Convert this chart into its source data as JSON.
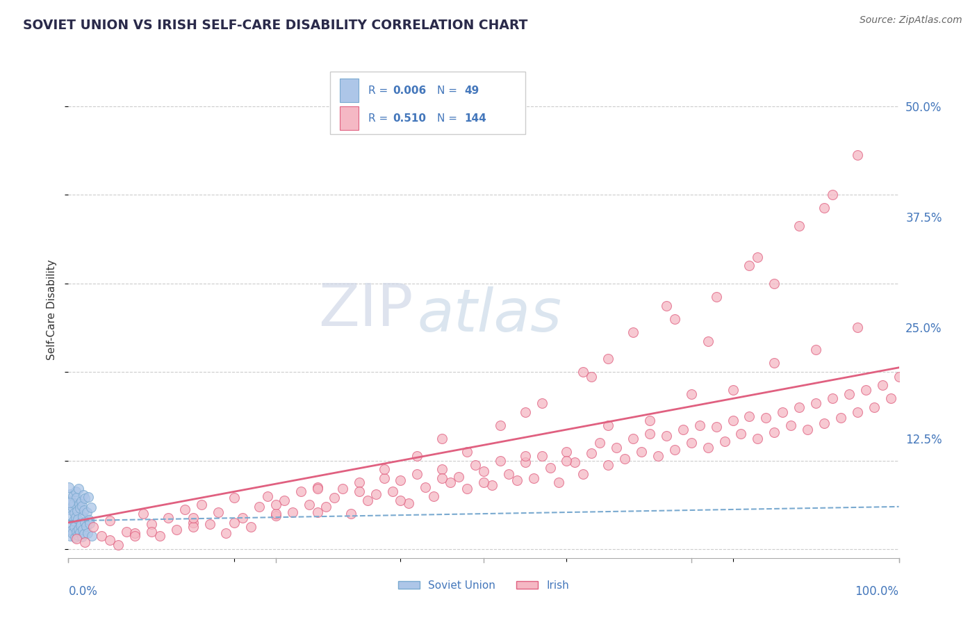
{
  "title": "SOVIET UNION VS IRISH SELF-CARE DISABILITY CORRELATION CHART",
  "source": "Source: ZipAtlas.com",
  "ylabel": "Self-Care Disability",
  "ytick_labels": [
    "12.5%",
    "25.0%",
    "37.5%",
    "50.0%"
  ],
  "ytick_values": [
    12.5,
    25.0,
    37.5,
    50.0
  ],
  "xlim": [
    0,
    100
  ],
  "ylim": [
    -1,
    55
  ],
  "blue_color": "#adc6e8",
  "pink_color": "#f5b8c4",
  "trend_blue_color": "#7aaad0",
  "trend_pink_color": "#e06080",
  "title_color": "#2a2a4a",
  "axis_label_color": "#4477bb",
  "background_color": "#ffffff",
  "grid_color": "#cccccc",
  "watermark_zip": "ZIP",
  "watermark_atlas": "atlas",
  "blue_trend_y": [
    3.2,
    4.8
  ],
  "pink_trend_y": [
    3.0,
    20.5
  ],
  "soviet_x": [
    0.1,
    0.15,
    0.2,
    0.25,
    0.3,
    0.35,
    0.4,
    0.45,
    0.5,
    0.55,
    0.6,
    0.65,
    0.7,
    0.75,
    0.8,
    0.85,
    0.9,
    0.95,
    1.0,
    1.05,
    1.1,
    1.15,
    1.2,
    1.25,
    1.3,
    1.35,
    1.4,
    1.45,
    1.5,
    1.55,
    1.6,
    1.65,
    1.7,
    1.75,
    1.8,
    1.85,
    1.9,
    1.95,
    2.0,
    2.1,
    2.2,
    2.3,
    2.4,
    2.5,
    2.6,
    2.7,
    2.8,
    0.05,
    0.12
  ],
  "soviet_y": [
    4.5,
    2.8,
    6.2,
    1.5,
    3.8,
    5.5,
    2.1,
    4.8,
    1.8,
    6.0,
    3.2,
    5.2,
    2.5,
    4.1,
    1.3,
    6.5,
    3.6,
    2.0,
    5.8,
    4.3,
    1.6,
    3.4,
    6.8,
    2.3,
    5.1,
    1.9,
    4.6,
    3.0,
    2.7,
    5.4,
    1.4,
    4.9,
    3.7,
    2.2,
    6.1,
    1.7,
    4.4,
    3.1,
    5.7,
    2.6,
    4.2,
    1.8,
    5.9,
    3.3,
    2.9,
    4.7,
    1.5,
    7.0,
    5.3
  ],
  "irish_x": [
    1,
    2,
    3,
    4,
    5,
    6,
    7,
    8,
    9,
    10,
    11,
    12,
    13,
    14,
    15,
    16,
    17,
    18,
    19,
    20,
    21,
    22,
    23,
    24,
    25,
    26,
    27,
    28,
    29,
    30,
    31,
    32,
    33,
    34,
    35,
    36,
    37,
    38,
    39,
    40,
    41,
    42,
    43,
    44,
    45,
    46,
    47,
    48,
    49,
    50,
    51,
    52,
    53,
    54,
    55,
    56,
    57,
    58,
    59,
    60,
    61,
    62,
    63,
    64,
    65,
    66,
    67,
    68,
    69,
    70,
    71,
    72,
    73,
    74,
    75,
    76,
    77,
    78,
    79,
    80,
    81,
    82,
    83,
    84,
    85,
    86,
    87,
    88,
    89,
    90,
    91,
    92,
    93,
    94,
    95,
    96,
    97,
    98,
    99,
    100,
    15,
    25,
    35,
    45,
    55,
    65,
    75,
    85,
    95,
    50,
    60,
    70,
    80,
    90,
    40,
    30,
    20,
    10,
    5,
    78,
    82,
    88,
    92,
    55,
    62,
    68,
    72,
    45,
    38,
    25,
    15,
    8,
    95,
    48,
    57,
    65,
    73,
    83,
    91,
    30,
    42,
    52,
    63,
    77,
    85
  ],
  "irish_y": [
    1.2,
    0.8,
    2.5,
    1.5,
    3.2,
    0.5,
    2.0,
    1.8,
    4.0,
    2.8,
    1.5,
    3.5,
    2.2,
    4.5,
    3.0,
    5.0,
    2.8,
    4.2,
    1.8,
    5.8,
    3.5,
    2.5,
    4.8,
    6.0,
    3.8,
    5.5,
    4.2,
    6.5,
    5.0,
    7.0,
    4.8,
    5.8,
    6.8,
    4.0,
    7.5,
    5.5,
    6.2,
    8.0,
    6.5,
    7.8,
    5.2,
    8.5,
    7.0,
    6.0,
    9.0,
    7.5,
    8.2,
    6.8,
    9.5,
    8.8,
    7.2,
    10.0,
    8.5,
    7.8,
    9.8,
    8.0,
    10.5,
    9.2,
    7.5,
    11.0,
    9.8,
    8.5,
    10.8,
    12.0,
    9.5,
    11.5,
    10.2,
    12.5,
    11.0,
    13.0,
    10.5,
    12.8,
    11.2,
    13.5,
    12.0,
    14.0,
    11.5,
    13.8,
    12.2,
    14.5,
    13.0,
    15.0,
    12.5,
    14.8,
    13.2,
    15.5,
    14.0,
    16.0,
    13.5,
    16.5,
    14.2,
    17.0,
    14.8,
    17.5,
    15.5,
    18.0,
    16.0,
    18.5,
    17.0,
    19.5,
    2.5,
    4.0,
    6.5,
    8.0,
    10.5,
    14.0,
    17.5,
    21.0,
    25.0,
    7.5,
    10.0,
    14.5,
    18.0,
    22.5,
    5.5,
    4.2,
    3.0,
    2.0,
    1.0,
    28.5,
    32.0,
    36.5,
    40.0,
    15.5,
    20.0,
    24.5,
    27.5,
    12.5,
    9.0,
    5.0,
    3.5,
    1.5,
    44.5,
    11.0,
    16.5,
    21.5,
    26.0,
    33.0,
    38.5,
    6.8,
    10.5,
    14.0,
    19.5,
    23.5,
    30.0
  ]
}
